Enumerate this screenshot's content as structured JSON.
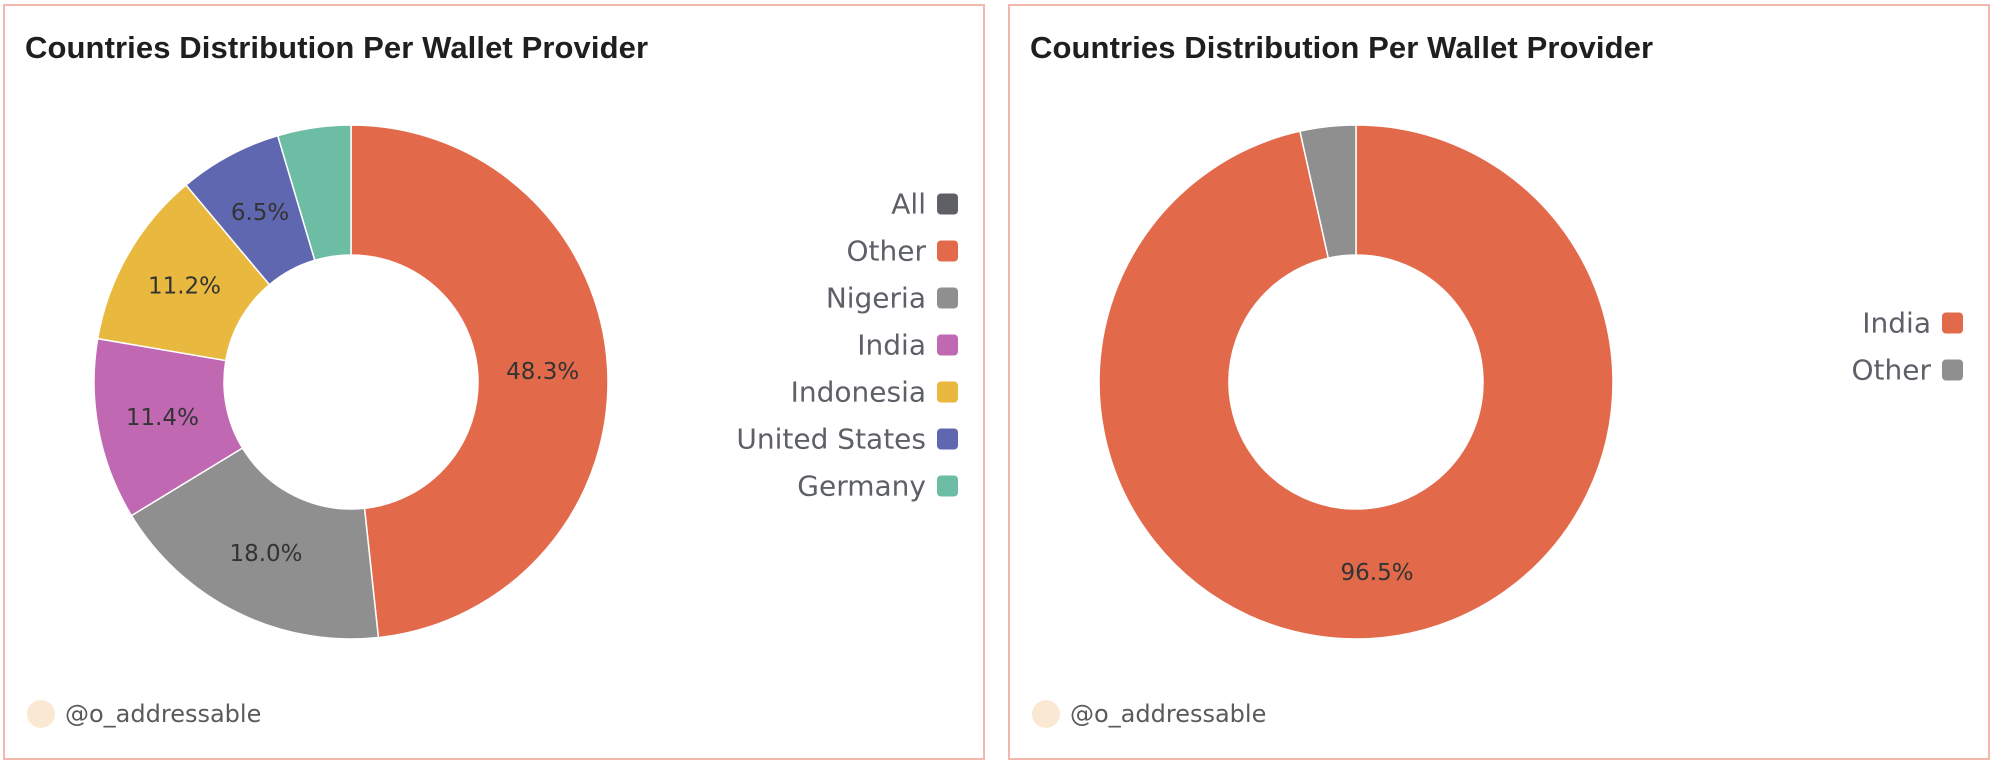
{
  "panels": [
    {
      "title": "Countries Distribution Per Wallet Provider",
      "author": "@o_addressable",
      "legend": [
        {
          "label": "All",
          "color": "#5f6066"
        },
        {
          "label": "Other",
          "color": "#e2694a"
        },
        {
          "label": "Nigeria",
          "color": "#8f8f8f"
        },
        {
          "label": "India",
          "color": "#c168b2"
        },
        {
          "label": "Indonesia",
          "color": "#e9b83e"
        },
        {
          "label": "United States",
          "color": "#5e67b0"
        },
        {
          "label": "Germany",
          "color": "#6dbda5"
        }
      ]
    },
    {
      "title": "Countries Distribution Per Wallet Provider",
      "author": "@o_addressable",
      "legend": [
        {
          "label": "India",
          "color": "#e2694a"
        },
        {
          "label": "Other",
          "color": "#8f8f8f"
        }
      ]
    }
  ],
  "chart_data": [
    {
      "type": "pie",
      "title": "Countries Distribution Per Wallet Provider",
      "donut": true,
      "legend_position": "right",
      "slices": [
        {
          "name": "Other",
          "value": 48.3,
          "label": "48.3%",
          "color": "#e2694a"
        },
        {
          "name": "Nigeria",
          "value": 18.0,
          "label": "18.0%",
          "color": "#8f8f8f"
        },
        {
          "name": "India",
          "value": 11.4,
          "label": "11.4%",
          "color": "#c168b2"
        },
        {
          "name": "Indonesia",
          "value": 11.2,
          "label": "11.2%",
          "color": "#e9b83e"
        },
        {
          "name": "United States",
          "value": 6.5,
          "label": "6.5%",
          "color": "#5e67b0"
        },
        {
          "name": "Germany",
          "value": 4.6,
          "label": "",
          "color": "#6dbda5"
        }
      ]
    },
    {
      "type": "pie",
      "title": "Countries Distribution Per Wallet Provider",
      "donut": true,
      "legend_position": "right",
      "slices": [
        {
          "name": "India",
          "value": 96.5,
          "label": "96.5%",
          "color": "#e2694a"
        },
        {
          "name": "Other",
          "value": 3.5,
          "label": "",
          "color": "#8f8f8f"
        }
      ]
    }
  ]
}
